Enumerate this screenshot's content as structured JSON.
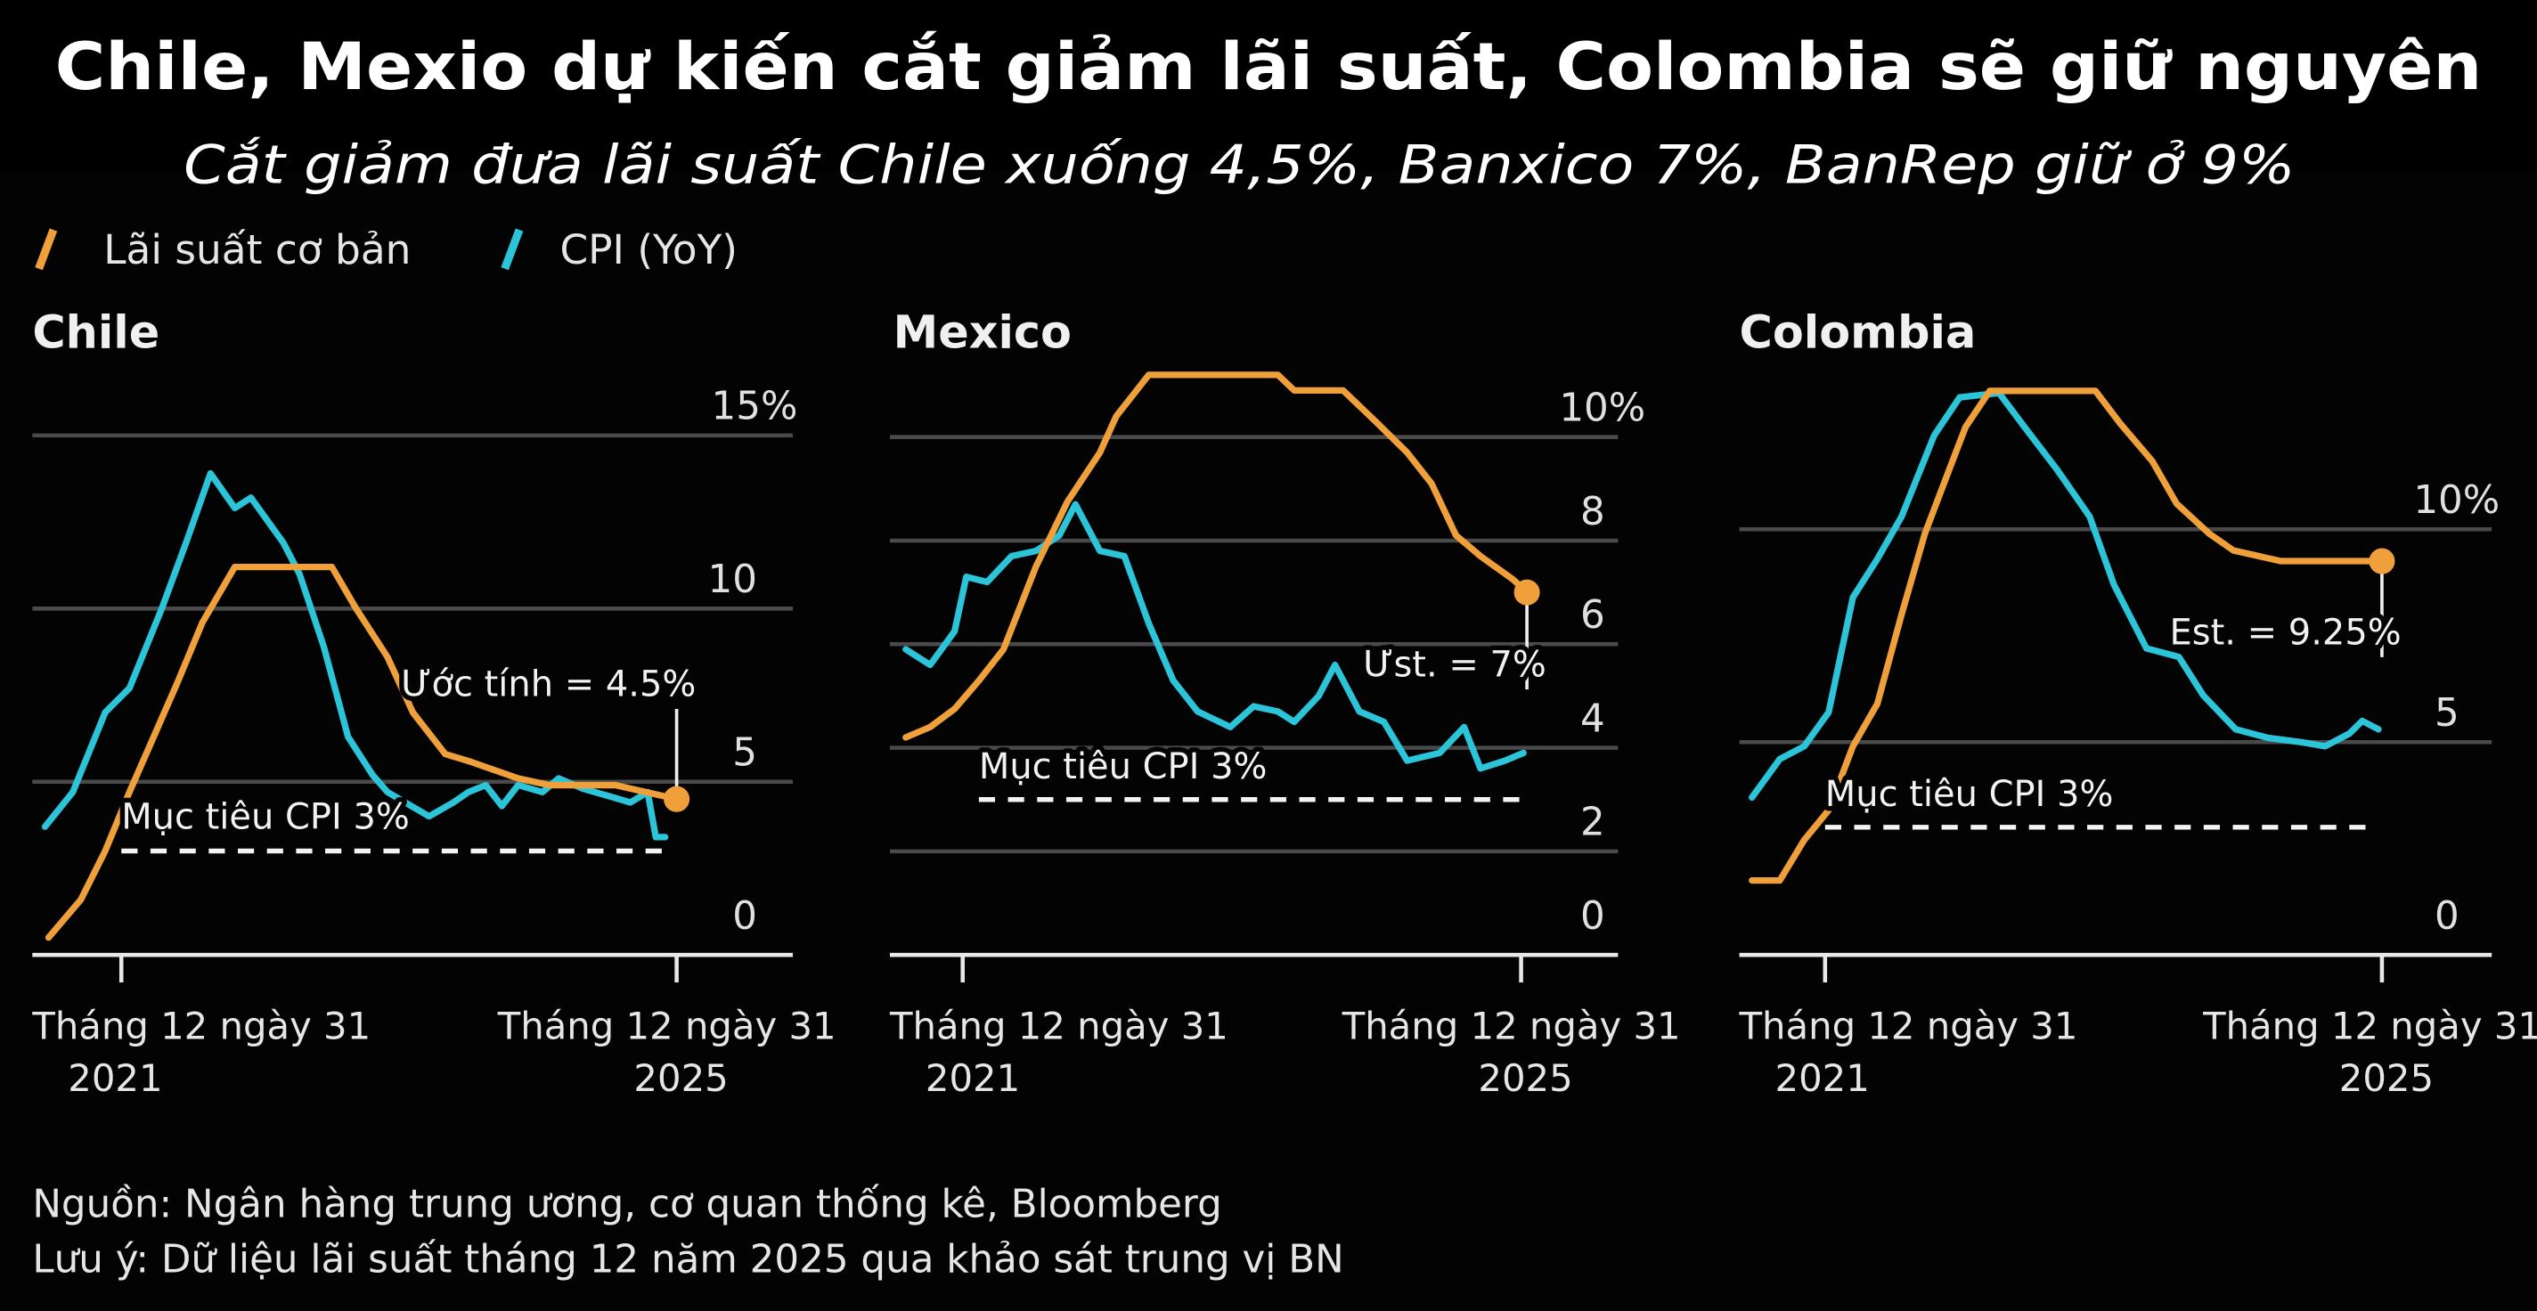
{
  "title": "Chile, Mexio dự kiến cắt giảm lãi suất, Colombia sẽ giữ nguyên",
  "subtitle": "Cắt giảm đưa lãi suất Chile xuống 4,5%, Banxico 7%, BanRep giữ ở 9%",
  "legend": [
    {
      "label": "Lãi suất cơ bản",
      "color": "#f0a03a"
    },
    {
      "label": "CPI (YoY)",
      "color": "#2cc4d8"
    }
  ],
  "footer": {
    "source": "Nguồn: Ngân hàng trung ương, cơ quan thống kê, Bloomberg",
    "note": "Lưu ý: Dữ liệu lãi suất tháng 12 năm 2025 qua khảo sát trung vị BN"
  },
  "chart_data": [
    {
      "type": "line",
      "title": "Chile",
      "x_unit": "months relative to Dec 31 2021",
      "x_ticks": [
        {
          "x": 0,
          "label": "Tháng 12 ngày 31",
          "year": "2021"
        },
        {
          "x": 48,
          "label": "Tháng 12 ngày 31",
          "year": "2025"
        }
      ],
      "ylim": [
        0,
        15
      ],
      "grid": [
        5,
        10,
        15
      ],
      "y_ticks": [
        {
          "v": 0,
          "label": "0"
        },
        {
          "v": 5,
          "label": "5"
        },
        {
          "v": 10,
          "label": "10"
        },
        {
          "v": 15,
          "label": "15%"
        }
      ],
      "target": {
        "value": 3,
        "label": "Mục tiêu CPI 3%"
      },
      "estimate": {
        "x": 48,
        "value": 4.5,
        "label": "Ước tính = 4.5%"
      },
      "series": [
        {
          "name": "Lãi suất cơ bản",
          "x": [
            -6.3,
            -3.5,
            -1.4,
            0.7,
            2.8,
            4.9,
            7,
            9.8,
            18.2,
            20.3,
            23,
            25.2,
            28,
            30,
            34.3,
            37,
            42.7,
            48
          ],
          "values": [
            0.5,
            1.6,
            3.0,
            4.7,
            6.3,
            7.9,
            9.6,
            11.2,
            11.2,
            10.0,
            8.6,
            7.0,
            5.8,
            5.6,
            5.1,
            4.9,
            4.9,
            4.5
          ]
        },
        {
          "name": "CPI (YoY)",
          "x": [
            -6.6,
            -4.2,
            -1.4,
            0.7,
            3.5,
            5.6,
            7.7,
            9.8,
            11.2,
            14,
            15.4,
            17.5,
            19.6,
            21.7,
            23,
            26.6,
            28.7,
            30,
            31.5,
            32.9,
            34.3,
            36.4,
            37.8,
            39.9,
            42,
            44,
            45.5,
            46.2,
            47
          ],
          "values": [
            3.7,
            4.7,
            7.0,
            7.7,
            10.0,
            11.9,
            13.9,
            12.9,
            13.2,
            11.9,
            11.0,
            8.9,
            6.3,
            5.2,
            4.7,
            4.0,
            4.4,
            4.7,
            4.9,
            4.3,
            4.9,
            4.7,
            5.1,
            4.8,
            4.6,
            4.4,
            4.7,
            3.4,
            3.4
          ]
        }
      ]
    },
    {
      "type": "line",
      "title": "Mexico",
      "x_unit": "months relative to Dec 31 2021",
      "x_ticks": [
        {
          "x": 0,
          "label": "Tháng 12 ngày 31",
          "year": "2021"
        },
        {
          "x": 48,
          "label": "Tháng 12 ngày 31",
          "year": "2025"
        }
      ],
      "ylim": [
        0,
        10
      ],
      "grid": [
        2,
        4,
        6,
        8,
        10
      ],
      "y_ticks": [
        {
          "v": 0,
          "label": "0"
        },
        {
          "v": 2,
          "label": "2"
        },
        {
          "v": 4,
          "label": "4"
        },
        {
          "v": 6,
          "label": "6"
        },
        {
          "v": 8,
          "label": "8"
        },
        {
          "v": 10,
          "label": "10%"
        }
      ],
      "target": {
        "value": 3,
        "label": "Mục tiêu CPI 3%"
      },
      "estimate": {
        "x": 48.5,
        "value": 7,
        "label": "Ưst. = 7%"
      },
      "series": [
        {
          "name": "Lãi suất cơ bản",
          "x": [
            -4.9,
            -2.8,
            -0.7,
            1.4,
            3.5,
            6.3,
            9,
            11.8,
            13.2,
            16,
            27.1,
            28.5,
            32.7,
            35.5,
            38.2,
            40.3,
            42.4,
            44.5,
            47.3,
            48.5
          ],
          "values": [
            4.2,
            4.4,
            4.75,
            5.3,
            5.9,
            7.5,
            8.75,
            9.7,
            10.4,
            11.2,
            11.2,
            10.9,
            10.9,
            10.3,
            9.7,
            9.1,
            8.1,
            7.7,
            7.25,
            7.0
          ]
        },
        {
          "name": "CPI (YoY)",
          "x": [
            -4.9,
            -2.8,
            -0.7,
            0.3,
            2.1,
            4.2,
            6.3,
            8.3,
            9.7,
            11.8,
            13.9,
            16,
            18.1,
            20.2,
            23,
            25,
            27.1,
            28.5,
            30.6,
            32,
            34.1,
            36.2,
            38.2,
            41,
            43.1,
            44.5,
            46.6,
            48.2
          ],
          "values": [
            5.9,
            5.6,
            6.25,
            7.3,
            7.2,
            7.7,
            7.8,
            8.1,
            8.7,
            7.8,
            7.7,
            6.4,
            5.3,
            4.7,
            4.4,
            4.8,
            4.7,
            4.5,
            5.0,
            5.6,
            4.7,
            4.5,
            3.75,
            3.9,
            4.4,
            3.6,
            3.75,
            3.9
          ]
        }
      ]
    },
    {
      "type": "line",
      "title": "Colombia",
      "x_unit": "months relative to Dec 31 2021",
      "x_ticks": [
        {
          "x": 0,
          "label": "Tháng 12 ngày 31",
          "year": "2021"
        },
        {
          "x": 48,
          "label": "Tháng 12 ngày 31",
          "year": "2025"
        }
      ],
      "ylim": [
        0,
        10
      ],
      "grid": [
        5,
        10
      ],
      "y_ticks": [
        {
          "v": 0,
          "label": "0"
        },
        {
          "v": 5,
          "label": "5"
        },
        {
          "v": 10,
          "label": "10%"
        }
      ],
      "target": {
        "value": 3,
        "label": "Mục tiêu CPI 3%"
      },
      "estimate": {
        "x": 48,
        "value": 9.25,
        "label": "Est. = 9.25%"
      },
      "series": [
        {
          "name": "Lãi suất cơ bản",
          "x": [
            -6.3,
            -3.9,
            -1.8,
            0.3,
            2.4,
            4.5,
            6.6,
            8.6,
            10.7,
            12.1,
            14.2,
            23.3,
            25.4,
            28.2,
            30.3,
            33.1,
            35.2,
            39.3,
            48
          ],
          "values": [
            1.75,
            1.75,
            2.7,
            3.4,
            4.9,
            5.9,
            8.0,
            9.9,
            11.4,
            12.4,
            13.25,
            13.25,
            12.5,
            11.6,
            10.6,
            9.9,
            9.5,
            9.25,
            9.25
          ]
        },
        {
          "name": "CPI (YoY)",
          "x": [
            -6.3,
            -3.9,
            -1.8,
            0.3,
            2.4,
            4.5,
            6.6,
            9.4,
            11.6,
            15,
            17.2,
            20,
            22.8,
            24.9,
            27.7,
            30.5,
            32.6,
            35.4,
            38.2,
            41,
            43.1,
            45.2,
            46.3,
            47.7
          ],
          "values": [
            3.7,
            4.6,
            4.9,
            5.7,
            8.4,
            9.3,
            10.3,
            12.2,
            13.1,
            13.2,
            12.4,
            11.4,
            10.3,
            8.7,
            7.2,
            7.0,
            6.1,
            5.3,
            5.1,
            5.0,
            4.9,
            5.2,
            5.5,
            5.3
          ]
        }
      ]
    }
  ]
}
